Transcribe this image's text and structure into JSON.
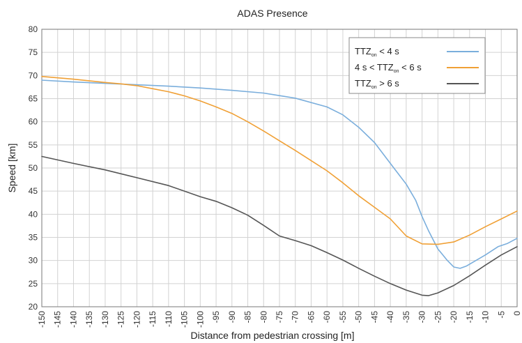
{
  "chart_data": {
    "type": "line",
    "title": "ADAS Presence",
    "xlabel": "Distance from pedestrian crossing [m]",
    "ylabel": "Speed [km]",
    "xlim": [
      -150,
      0
    ],
    "ylim": [
      20,
      80
    ],
    "xticks": [
      -150,
      -145,
      -140,
      -135,
      -130,
      -125,
      -120,
      -115,
      -110,
      -105,
      -100,
      -95,
      -90,
      -85,
      -80,
      -75,
      -70,
      -65,
      -60,
      -55,
      -50,
      -45,
      -40,
      -35,
      -30,
      -25,
      -20,
      -15,
      -10,
      -5,
      0
    ],
    "yticks": [
      20,
      25,
      30,
      35,
      40,
      45,
      50,
      55,
      60,
      65,
      70,
      75,
      80
    ],
    "grid": true,
    "legend_position": "top-right",
    "series": [
      {
        "name": "TTZ < 4 s",
        "legend": {
          "main": "TTZ",
          "sub": "on",
          "rest": " < 4 s"
        },
        "color": "#7aaedc",
        "x": [
          -150,
          -140,
          -130,
          -120,
          -110,
          -100,
          -90,
          -80,
          -70,
          -60,
          -55,
          -50,
          -45,
          -40,
          -35,
          -32,
          -30,
          -28,
          -25,
          -22,
          -20,
          -18,
          -16,
          -14,
          -10,
          -6,
          -3,
          0
        ],
        "y": [
          69,
          68.6,
          68.3,
          68,
          67.7,
          67.3,
          66.8,
          66.2,
          65.1,
          63.2,
          61.5,
          58.8,
          55.5,
          51,
          46.5,
          43,
          39.5,
          36.5,
          32.5,
          30,
          28.6,
          28.3,
          28.8,
          29.6,
          31.2,
          33,
          33.7,
          34.8
        ]
      },
      {
        "name": "4 s < TTZ < 6 s",
        "legend": {
          "main": "4 s < TTZ",
          "sub": "on",
          "rest": " < 6 s"
        },
        "color": "#f0a035",
        "x": [
          -150,
          -140,
          -130,
          -125,
          -120,
          -110,
          -105,
          -100,
          -95,
          -90,
          -85,
          -80,
          -75,
          -70,
          -65,
          -60,
          -55,
          -50,
          -45,
          -40,
          -35,
          -30,
          -25,
          -20,
          -15,
          -10,
          -5,
          0
        ],
        "y": [
          69.8,
          69.2,
          68.5,
          68.2,
          67.8,
          66.5,
          65.6,
          64.5,
          63.2,
          61.8,
          60,
          58,
          55.9,
          53.8,
          51.6,
          49.4,
          46.8,
          44,
          41.5,
          39,
          35.3,
          33.6,
          33.5,
          34,
          35.5,
          37.3,
          39,
          40.7
        ]
      },
      {
        "name": "TTZ > 6 s",
        "legend": {
          "main": "TTZ",
          "sub": "on",
          "rest": " > 6 s"
        },
        "color": "#555555",
        "x": [
          -150,
          -140,
          -130,
          -120,
          -110,
          -100,
          -95,
          -90,
          -85,
          -80,
          -75,
          -70,
          -65,
          -60,
          -55,
          -50,
          -45,
          -40,
          -35,
          -30,
          -28,
          -25,
          -20,
          -15,
          -10,
          -5,
          0
        ],
        "y": [
          52.5,
          51,
          49.6,
          47.9,
          46.2,
          43.8,
          42.8,
          41.4,
          39.8,
          37.6,
          35.3,
          34.3,
          33.2,
          31.7,
          30.1,
          28.3,
          26.6,
          25,
          23.6,
          22.5,
          22.4,
          23,
          24.6,
          26.7,
          29,
          31.2,
          33
        ]
      }
    ]
  }
}
